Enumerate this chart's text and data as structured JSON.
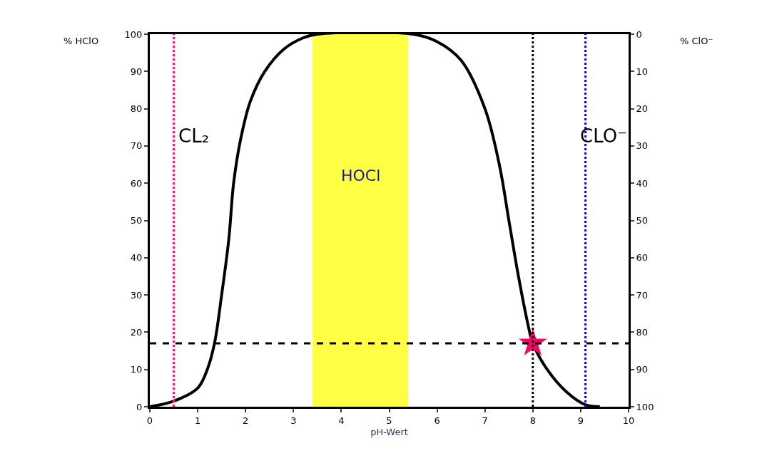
{
  "chart_data": {
    "type": "line",
    "xlabel": "pH-Wert",
    "ylabel": "% HClO",
    "y2label": "% ClO⁻",
    "xlim": [
      0,
      10
    ],
    "xticks": [
      0,
      1,
      2,
      3,
      4,
      5,
      6,
      7,
      8,
      9,
      10
    ],
    "ylim": [
      0,
      100
    ],
    "yticks": [
      0,
      10,
      20,
      30,
      40,
      50,
      60,
      70,
      80,
      90,
      100
    ],
    "y2lim": [
      100,
      0
    ],
    "y2ticks": [
      0,
      10,
      20,
      30,
      40,
      50,
      60,
      70,
      80,
      90,
      100
    ],
    "grid": false,
    "legend": false,
    "series": [
      {
        "color": "#000000",
        "x": [
          0,
          0.5,
          1,
          1.2,
          1.35,
          1.5,
          1.65,
          1.75,
          1.9,
          2.1,
          2.4,
          2.8,
          3.2,
          3.5,
          5.5,
          6,
          6.5,
          7,
          7.3,
          7.5,
          7.7,
          7.9,
          8,
          8.3,
          8.7,
          9.1,
          9.4
        ],
        "values": [
          0,
          1.5,
          5,
          10,
          17,
          30,
          45,
          60,
          72,
          82,
          90,
          96,
          99,
          100,
          100,
          98,
          93,
          80,
          65,
          50,
          35,
          22,
          17,
          10,
          4,
          0.5,
          0
        ]
      },
      {
        "type": "scatter",
        "marker": "star",
        "color": "#ff0066",
        "x": [
          8
        ],
        "values": [
          17
        ]
      }
    ],
    "ref_lines": [
      {
        "axis": "x",
        "value": 0.5,
        "label": "CL₂",
        "color": "#ff1a66",
        "line_style": "dotted"
      },
      {
        "axis": "x",
        "value": 9.1,
        "label": "CLO⁻",
        "color": "#0000ff",
        "line_style": "dotted"
      },
      {
        "axis": "x",
        "value": 8,
        "label": null,
        "color": "#000000",
        "line_style": "dotted"
      },
      {
        "axis": "y",
        "value": 17,
        "label": null,
        "color": "#000000",
        "line_style": "dashed"
      }
    ],
    "bands": [
      {
        "axis": "x",
        "from": 3.4,
        "to": 5.4,
        "label": "HOCl",
        "color": "#ffff44"
      }
    ]
  }
}
